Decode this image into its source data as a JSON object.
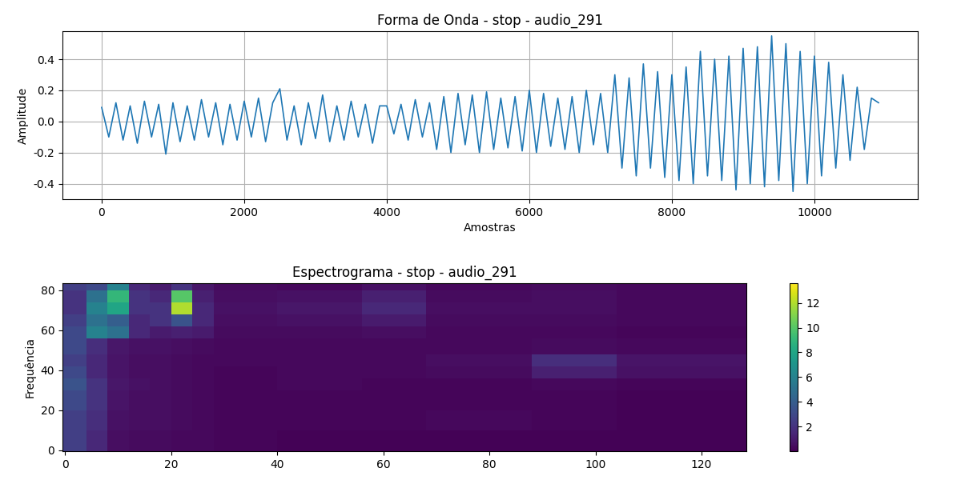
{
  "chart_data": [
    {
      "type": "line",
      "title": "Forma de Onda - stop - audio_291",
      "x_label": "Amostras",
      "y_label": "Amplitude",
      "color": "#1f77b4",
      "grid": true,
      "x": [
        0,
        100,
        200,
        300,
        400,
        500,
        600,
        700,
        800,
        900,
        1000,
        1100,
        1200,
        1300,
        1400,
        1500,
        1600,
        1700,
        1800,
        1900,
        2000,
        2100,
        2200,
        2300,
        2400,
        2500,
        2600,
        2700,
        2800,
        2900,
        3000,
        3100,
        3200,
        3300,
        3400,
        3500,
        3600,
        3700,
        3800,
        3900,
        4000,
        4100,
        4200,
        4300,
        4400,
        4500,
        4600,
        4700,
        4800,
        4900,
        5000,
        5100,
        5200,
        5300,
        5400,
        5500,
        5600,
        5700,
        5800,
        5900,
        6000,
        6100,
        6200,
        6300,
        6400,
        6500,
        6600,
        6700,
        6800,
        6900,
        7000,
        7100,
        7200,
        7300,
        7400,
        7500,
        7600,
        7700,
        7800,
        7900,
        8000,
        8100,
        8200,
        8300,
        8400,
        8500,
        8600,
        8700,
        8800,
        8900,
        9000,
        9100,
        9200,
        9300,
        9400,
        9500,
        9600,
        9700,
        9800,
        9900,
        10000,
        10100,
        10200,
        10300,
        10400,
        10500,
        10600,
        10700,
        10800,
        10900
      ],
      "values": [
        0.09,
        -0.1,
        0.12,
        -0.12,
        0.1,
        -0.14,
        0.13,
        -0.1,
        0.11,
        -0.21,
        0.12,
        -0.13,
        0.1,
        -0.12,
        0.14,
        -0.1,
        0.12,
        -0.15,
        0.11,
        -0.12,
        0.13,
        -0.1,
        0.15,
        -0.13,
        0.12,
        0.21,
        -0.12,
        0.1,
        -0.15,
        0.12,
        -0.11,
        0.17,
        -0.13,
        0.1,
        -0.12,
        0.13,
        -0.1,
        0.11,
        -0.14,
        0.1,
        0.1,
        -0.08,
        0.11,
        -0.12,
        0.14,
        -0.1,
        0.12,
        -0.18,
        0.16,
        -0.2,
        0.18,
        -0.15,
        0.17,
        -0.2,
        0.19,
        -0.18,
        0.15,
        -0.17,
        0.16,
        -0.19,
        0.2,
        -0.2,
        0.18,
        -0.16,
        0.15,
        -0.18,
        0.16,
        -0.2,
        0.2,
        -0.15,
        0.18,
        -0.2,
        0.3,
        -0.3,
        0.28,
        -0.35,
        0.37,
        -0.3,
        0.32,
        -0.36,
        0.3,
        -0.38,
        0.35,
        -0.4,
        0.45,
        -0.35,
        0.4,
        -0.38,
        0.42,
        -0.44,
        0.47,
        -0.4,
        0.48,
        -0.42,
        0.55,
        -0.38,
        0.5,
        -0.45,
        0.45,
        -0.4,
        0.42,
        -0.35,
        0.38,
        -0.3,
        0.3,
        -0.25,
        0.22,
        -0.18,
        0.15,
        0.12
      ],
      "xlim": [
        -550,
        11450
      ],
      "xticks": [
        0,
        2000,
        4000,
        6000,
        8000,
        10000
      ],
      "ylim": [
        -0.5,
        0.58
      ],
      "yticks": [
        -0.4,
        -0.2,
        0.0,
        0.2,
        0.4
      ]
    },
    {
      "type": "heatmap",
      "title": "Espectrograma - stop - audio_291",
      "y_label": "Frequência",
      "grid": false,
      "time_edges": [
        -0.5,
        4,
        8,
        12,
        16,
        20,
        24,
        28,
        40,
        56,
        68,
        88,
        104,
        128.5
      ],
      "freq_edges": [
        -0.5,
        10,
        20,
        30,
        36,
        42,
        48,
        56,
        62,
        68,
        74,
        80,
        83.5
      ],
      "cells": [
        [
          2.5,
          1.5,
          0.5,
          0.4,
          0.4,
          0.3,
          0.3,
          0.2,
          0.1,
          0.1,
          0.1,
          0.1,
          0.1
        ],
        [
          2.5,
          1.8,
          0.6,
          0.5,
          0.5,
          0.4,
          0.3,
          0.2,
          0.2,
          0.2,
          0.3,
          0.2,
          0.1
        ],
        [
          3,
          2,
          0.7,
          0.5,
          0.5,
          0.4,
          0.3,
          0.2,
          0.2,
          0.2,
          0.2,
          0.2,
          0.1
        ],
        [
          3.5,
          2,
          0.8,
          0.6,
          0.5,
          0.4,
          0.3,
          0.2,
          0.3,
          0.2,
          0.2,
          0.3,
          0.2
        ],
        [
          3,
          1.5,
          0.7,
          0.5,
          0.5,
          0.4,
          0.3,
          0.2,
          0.3,
          0.3,
          0.4,
          1.2,
          0.6
        ],
        [
          2.5,
          1.5,
          0.7,
          0.5,
          0.5,
          0.4,
          0.3,
          0.3,
          0.3,
          0.3,
          0.5,
          1.8,
          0.7
        ],
        [
          3,
          1.8,
          0.8,
          0.6,
          0.6,
          0.5,
          0.4,
          0.3,
          0.3,
          0.3,
          0.3,
          0.4,
          0.3
        ],
        [
          3,
          6,
          5,
          1.5,
          1,
          1.2,
          1,
          0.4,
          0.4,
          0.5,
          0.3,
          0.3,
          0.2
        ],
        [
          2.5,
          5,
          4,
          1.5,
          2,
          3.5,
          1.5,
          0.5,
          0.6,
          1,
          0.4,
          0.4,
          0.3
        ],
        [
          2,
          6,
          8,
          2,
          2,
          12,
          1.5,
          0.6,
          0.8,
          1.5,
          0.5,
          0.5,
          0.3
        ],
        [
          2,
          5,
          9,
          2,
          1.5,
          10,
          1.2,
          0.5,
          0.6,
          1.2,
          0.4,
          0.5,
          0.3
        ],
        [
          2.5,
          3,
          6,
          1.5,
          1,
          2,
          0.8,
          0.4,
          0.3,
          0.6,
          0.3,
          0.4,
          0.3
        ]
      ],
      "xlim": [
        -0.5,
        128.5
      ],
      "xticks": [
        0,
        20,
        40,
        60,
        80,
        100,
        120
      ],
      "ylim": [
        -0.5,
        83.5
      ],
      "yticks": [
        0,
        20,
        40,
        60,
        80
      ],
      "color_range": [
        0,
        13.6
      ],
      "color_ticks": [
        2,
        4,
        6,
        8,
        10,
        12
      ]
    }
  ]
}
